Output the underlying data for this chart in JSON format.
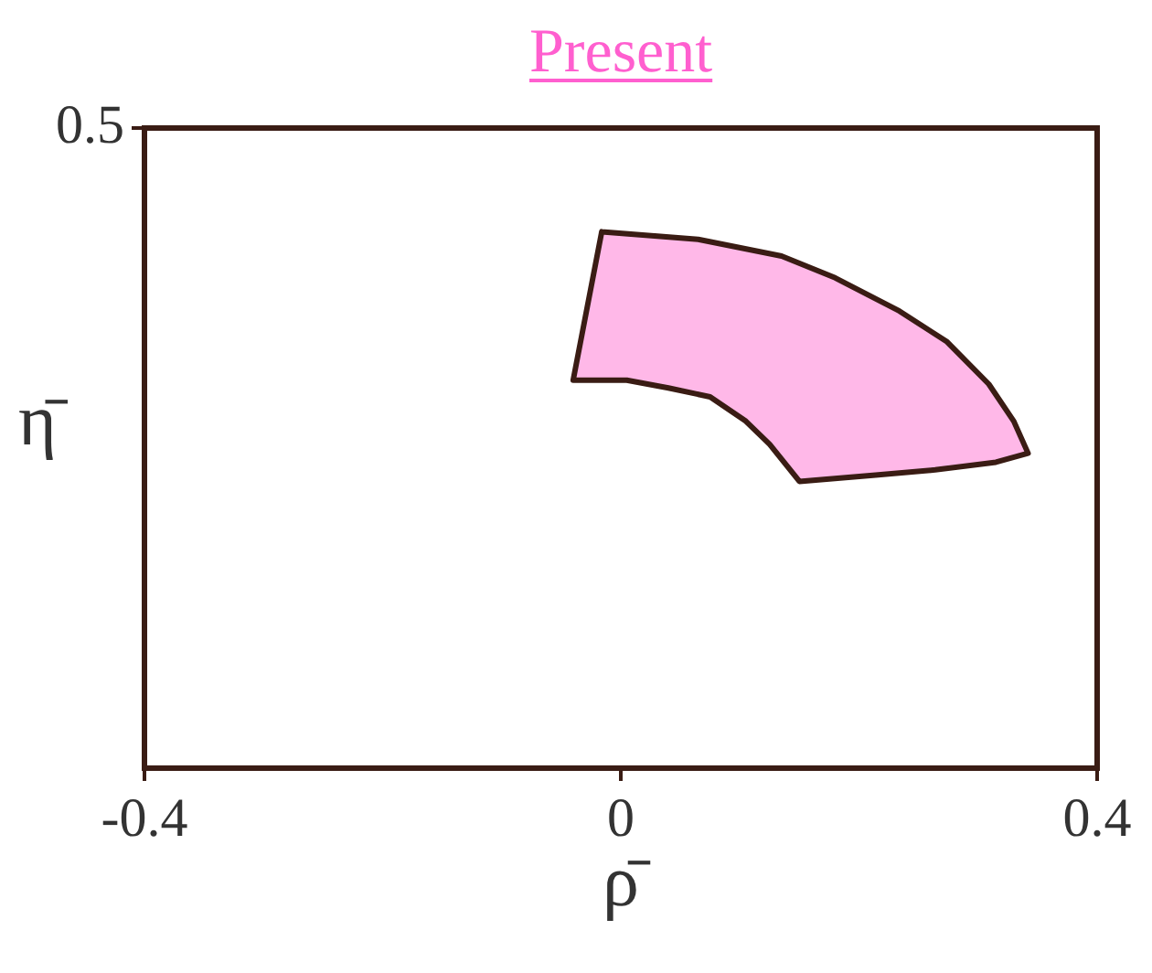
{
  "chart_data": {
    "type": "area",
    "title": "Present",
    "xlabel": "ρ̄",
    "ylabel": "η̄",
    "xlim": [
      -0.4,
      0.4
    ],
    "xticks": [
      -0.4,
      0,
      0.4
    ],
    "ylim": [
      0,
      0.5
    ],
    "yticks": [
      0.5
    ],
    "marker": "none",
    "series": [
      {
        "color": "#ffb8e8",
        "x": [
          -0.016,
          0.065,
          0.135,
          0.18,
          0.234,
          0.274,
          0.309,
          0.33,
          0.342,
          0.315,
          0.264,
          0.214,
          0.15,
          0.125,
          0.105,
          0.075,
          0.04,
          0.005,
          -0.04,
          -0.016
        ],
        "values": [
          0.419,
          0.413,
          0.4,
          0.383,
          0.357,
          0.333,
          0.3,
          0.271,
          0.246,
          0.239,
          0.233,
          0.229,
          0.224,
          0.253,
          0.271,
          0.29,
          0.297,
          0.303,
          0.303,
          0.419
        ]
      }
    ]
  }
}
